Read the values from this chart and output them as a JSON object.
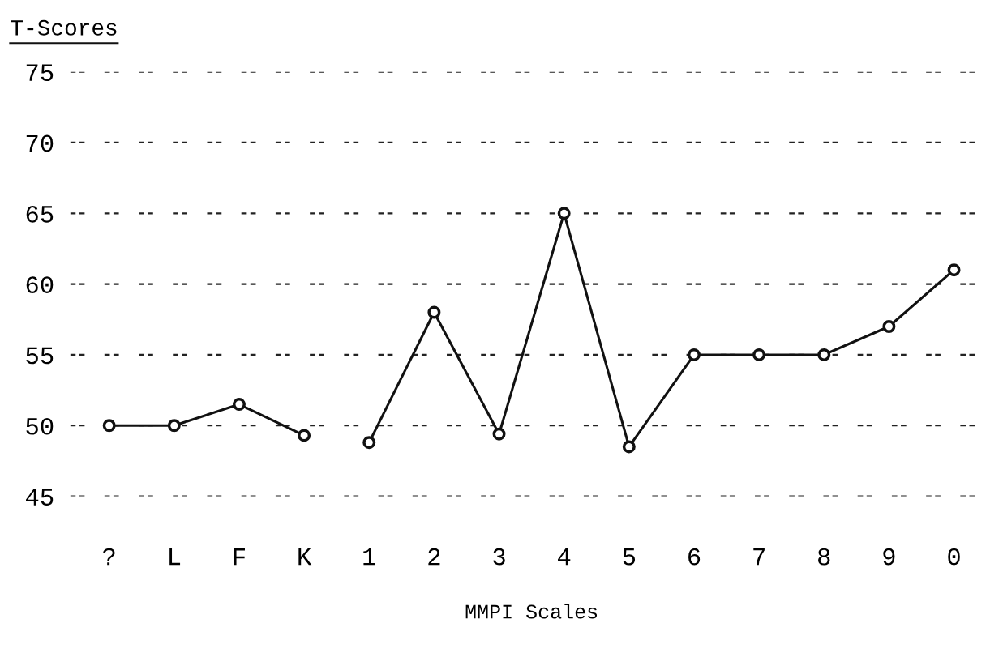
{
  "chart_data": {
    "type": "line",
    "title": "T-Scores",
    "xlabel": "MMPI Scales",
    "categories": [
      "?",
      "L",
      "F",
      "K",
      "1",
      "2",
      "3",
      "4",
      "5",
      "6",
      "7",
      "8",
      "9",
      "0"
    ],
    "series": [
      {
        "color": "#111111",
        "values": [
          50,
          50,
          51.5,
          49.3,
          null,
          null,
          null,
          null,
          null,
          null,
          null,
          null,
          null,
          null
        ]
      },
      {
        "color": "#111111",
        "values": [
          null,
          null,
          null,
          null,
          48.8,
          58,
          49.4,
          65,
          48.5,
          55,
          55,
          55,
          57,
          61
        ]
      }
    ],
    "ylim": [
      45,
      75
    ],
    "yticks": [
      45,
      50,
      55,
      60,
      65,
      70,
      75
    ],
    "grid": "y",
    "marker": "circle",
    "line_style": "solid"
  }
}
